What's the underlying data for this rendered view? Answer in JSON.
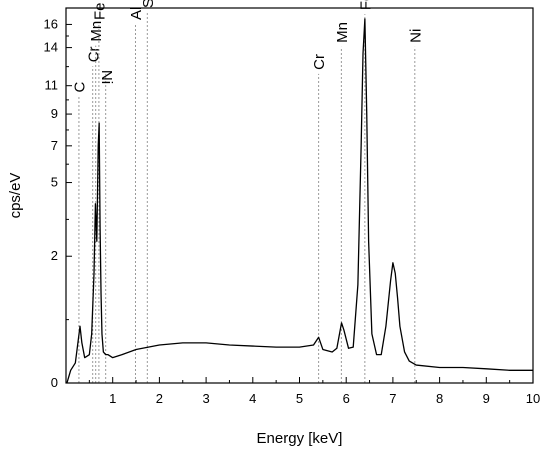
{
  "chart_data": {
    "type": "line",
    "title": "",
    "xlabel": "Energy [keV]",
    "ylabel": "cps/eV",
    "xlim": [
      0,
      10
    ],
    "ylim": [
      0,
      17.5
    ],
    "y_scale": "sqrt",
    "xticks": [
      1,
      2,
      3,
      4,
      5,
      6,
      7,
      8,
      9,
      10
    ],
    "xtick_labels": [
      "1",
      "2",
      "3",
      "4",
      "5",
      "6",
      "7",
      "8",
      "9",
      "10"
    ],
    "yticks": [
      0,
      2,
      5,
      7,
      9,
      11,
      14,
      16
    ],
    "ytick_labels": [
      "0",
      "2",
      "5",
      "7",
      "9",
      "11",
      "14",
      "16"
    ],
    "grid": false,
    "legend": "none",
    "series": [
      {
        "color": "#000000",
        "x": [
          0.02,
          0.1,
          0.2,
          0.26,
          0.3,
          0.34,
          0.4,
          0.5,
          0.55,
          0.6,
          0.63,
          0.66,
          0.69,
          0.71,
          0.73,
          0.75,
          0.77,
          0.8,
          0.85,
          0.9,
          1.0,
          1.2,
          1.5,
          2.0,
          2.5,
          3.0,
          3.5,
          4.0,
          4.5,
          5.0,
          5.3,
          5.41,
          5.5,
          5.7,
          5.8,
          5.9,
          5.95,
          6.05,
          6.15,
          6.25,
          6.32,
          6.36,
          6.4,
          6.44,
          6.48,
          6.55,
          6.65,
          6.75,
          6.85,
          6.95,
          7.0,
          7.05,
          7.1,
          7.15,
          7.25,
          7.35,
          7.5,
          8.0,
          8.5,
          9.0,
          9.5,
          10.0
        ],
        "y": [
          0.0,
          0.02,
          0.05,
          0.22,
          0.4,
          0.2,
          0.08,
          0.1,
          0.3,
          1.5,
          4.0,
          2.5,
          7.0,
          8.4,
          3.0,
          1.0,
          0.3,
          0.12,
          0.1,
          0.1,
          0.08,
          0.1,
          0.14,
          0.18,
          0.2,
          0.2,
          0.18,
          0.17,
          0.16,
          0.16,
          0.18,
          0.26,
          0.14,
          0.12,
          0.15,
          0.45,
          0.35,
          0.15,
          0.16,
          1.2,
          7.0,
          13.5,
          16.5,
          9.0,
          2.5,
          0.3,
          0.1,
          0.1,
          0.4,
          1.3,
          1.8,
          1.5,
          0.9,
          0.4,
          0.12,
          0.06,
          0.04,
          0.03,
          0.03,
          0.025,
          0.02,
          0.02
        ]
      }
    ],
    "element_markers": [
      {
        "label": "C",
        "energy": 0.277,
        "label_height": 10.5,
        "rotated": false
      },
      {
        "label": "Cr",
        "energy": 0.573,
        "label_height": 12.8,
        "rotated": false
      },
      {
        "label": "Mn",
        "energy": 0.637,
        "label_height": 14.5,
        "rotated": false
      },
      {
        "label": "Fe",
        "energy": 0.705,
        "label_height": 16.4,
        "rotated": false
      },
      {
        "label": "Ni",
        "energy": 0.851,
        "label_height": 12.2,
        "rotated": true
      },
      {
        "label": "Al",
        "energy": 1.486,
        "label_height": 16.4,
        "rotated": false
      },
      {
        "label": "Si",
        "energy": 1.74,
        "label_height": 17.5,
        "rotated": false
      },
      {
        "label": "Cr",
        "energy": 5.411,
        "label_height": 12.2,
        "rotated": false
      },
      {
        "label": "Mn",
        "energy": 5.895,
        "label_height": 14.4,
        "rotated": false
      },
      {
        "label": "Fe",
        "energy": 6.4,
        "label_height": 17.3,
        "rotated": false
      },
      {
        "label": "Ni",
        "energy": 7.47,
        "label_height": 14.4,
        "rotated": false
      }
    ]
  }
}
